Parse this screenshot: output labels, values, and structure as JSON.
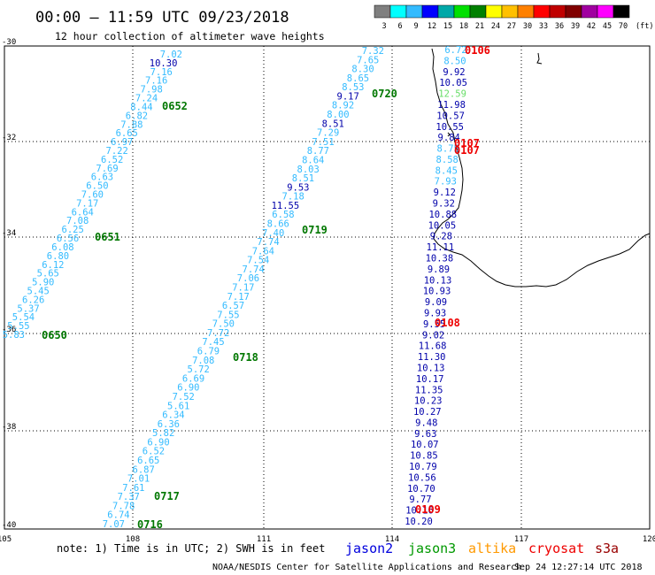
{
  "header": {
    "title": "00:00 – 11:59 UTC 09/23/2018",
    "subtitle": "12 hour collection of altimeter wave heights"
  },
  "colorbar": {
    "labels": [
      "3",
      "6",
      "9",
      "12",
      "15",
      "18",
      "21",
      "24",
      "27",
      "30",
      "33",
      "36",
      "39",
      "42",
      "45",
      "70"
    ],
    "unit": "(ft)",
    "colors": [
      "#7f7f7f",
      "#00ffff",
      "#33bbff",
      "#0000ff",
      "#00a8a8",
      "#00e000",
      "#008000",
      "#ffff00",
      "#ffc000",
      "#ff8000",
      "#ff0000",
      "#c00000",
      "#800000",
      "#a000a0",
      "#ff00ff",
      "#000000"
    ]
  },
  "axes": {
    "lon_labels": [
      "105",
      "108",
      "111",
      "114",
      "117",
      "120"
    ],
    "lat_labels": [
      "-30",
      "-32",
      "-34",
      "-36",
      "-38",
      "-40"
    ]
  },
  "colors": {
    "light": "#33bbff",
    "dark": "#0000aa",
    "jason3_ts": "#007700",
    "jason2_ts": "#ee0000",
    "pale_green": "#66dd66"
  },
  "track_a": {
    "values": [
      "7.02",
      "10.30",
      "7.16",
      "7.16",
      "7.98",
      "7.24",
      "8.44",
      "6.82",
      "7.88",
      "6.65",
      "6.97",
      "7.22",
      "6.52",
      "7.69",
      "6.63",
      "6.50",
      "7.60",
      "7.17",
      "6.64",
      "7.08",
      "6.25",
      "6.56",
      "6.08",
      "6.80",
      "6.12",
      "5.65",
      "5.90",
      "5.45",
      "6.26",
      "5.37",
      "5.54",
      "5.55",
      "5.83"
    ],
    "dark_index": [
      1
    ]
  },
  "track_b": {
    "values": [
      "7.32",
      "7.65",
      "8.30",
      "8.65",
      "8.53",
      "9.17",
      "8.92",
      "8.00",
      "8.51",
      "7.29",
      "7.51",
      "8.77",
      "8.64",
      "8.03",
      "8.51",
      "9.53",
      "7.18",
      "11.55",
      "6.58",
      "8.66",
      "7.40",
      "7.74",
      "7.64",
      "7.54",
      "7.74",
      "7.06",
      "7.17",
      "7.17",
      "6.57",
      "7.55",
      "7.50",
      "7.72",
      "7.45",
      "6.79",
      "7.08",
      "5.72",
      "6.69",
      "6.90",
      "7.52",
      "5.61",
      "6.34",
      "6.36",
      "5.82",
      "6.90",
      "6.52",
      "6.65",
      "6.87",
      "7.01",
      "7.61",
      "7.37",
      "7.78",
      "6.74",
      "7.07"
    ],
    "dark_index": [
      5,
      8,
      15,
      17
    ]
  },
  "track_c": {
    "values": [
      "6.72",
      "8.50",
      "9.92",
      "10.05",
      "12.59",
      "11.98",
      "10.57",
      "10.55",
      "9.84",
      "8.75",
      "8.58",
      "8.45",
      "7.93",
      "9.12",
      "9.32",
      "10.88",
      "10.05",
      "9.28",
      "11.11",
      "10.38",
      "9.89",
      "10.13",
      "10.93",
      "9.09",
      "9.93",
      "9.55",
      "9.02",
      "11.68",
      "11.30",
      "10.13",
      "10.17",
      "11.35",
      "10.23",
      "10.27",
      "9.48",
      "9.63",
      "10.07",
      "10.85",
      "10.79",
      "10.56",
      "10.70",
      "9.77",
      "10.16",
      "10.20"
    ],
    "light_index": [
      0,
      1,
      9,
      10,
      11,
      12
    ],
    "pale_index": [
      4
    ]
  },
  "timestamps": [
    {
      "text": "0652",
      "sat": "jason3"
    },
    {
      "text": "0651",
      "sat": "jason3"
    },
    {
      "text": "0650",
      "sat": "jason3"
    },
    {
      "text": "0720",
      "sat": "jason3"
    },
    {
      "text": "0719",
      "sat": "jason3"
    },
    {
      "text": "0718",
      "sat": "jason3"
    },
    {
      "text": "0717",
      "sat": "jason3"
    },
    {
      "text": "0716",
      "sat": "jason3"
    },
    {
      "text": "0106",
      "sat": "jason2"
    },
    {
      "text": "0107",
      "sat": "jason2"
    },
    {
      "text": "0107",
      "sat": "jason2"
    },
    {
      "text": "0108",
      "sat": "jason2"
    },
    {
      "text": "0109",
      "sat": "jason2"
    }
  ],
  "footer": {
    "note": "note: 1) Time is in UTC; 2) SWH is in feet",
    "satellites": [
      {
        "name": "jason2",
        "color": "#0000dd"
      },
      {
        "name": "jason3",
        "color": "#009900"
      },
      {
        "name": "altika",
        "color": "#ff9900"
      },
      {
        "name": "cryosat",
        "color": "#ee0000"
      },
      {
        "name": "s3a",
        "color": "#990000"
      }
    ],
    "credit": "NOAA/NESDIS Center for Satellite Applications and Research",
    "timestamp": "Sep 24 12:27:14 UTC 2018"
  }
}
